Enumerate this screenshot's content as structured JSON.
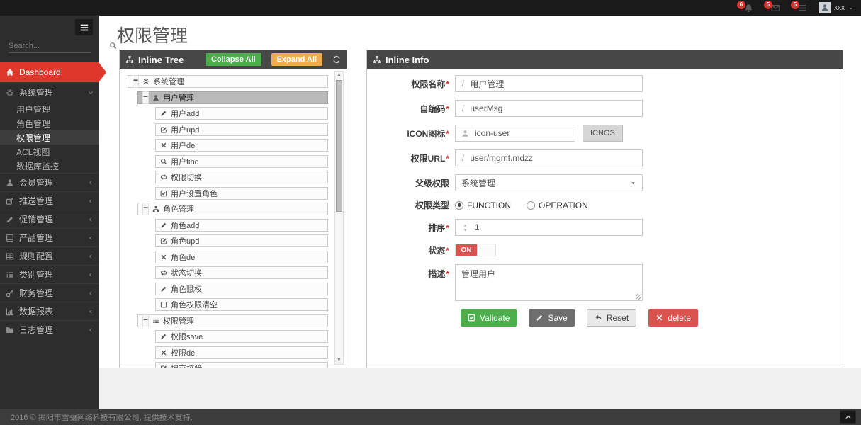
{
  "navbar": {
    "notifications": [
      {
        "icon": "bell-icon",
        "count": "6"
      },
      {
        "icon": "envelope-icon",
        "count": "5"
      },
      {
        "icon": "tasks-icon",
        "count": "5"
      }
    ],
    "user": {
      "name": "xxx"
    }
  },
  "sidebar": {
    "search_placeholder": "Search...",
    "items": [
      {
        "id": "dashboard",
        "icon": "home",
        "label": "Dashboard",
        "variant": "active-red"
      },
      {
        "id": "system",
        "icon": "gears",
        "label": "系统管理",
        "chevron": "down",
        "expanded": true,
        "children": [
          {
            "label": "用户管理",
            "active": false
          },
          {
            "label": "角色管理",
            "active": false
          },
          {
            "label": "权限管理",
            "active": true
          },
          {
            "label": "ACL视图",
            "active": false
          },
          {
            "label": "数据库监控",
            "active": false
          }
        ]
      },
      {
        "id": "member",
        "icon": "user",
        "label": "会员管理",
        "chevron": "left"
      },
      {
        "id": "push",
        "icon": "share",
        "label": "推送管理",
        "chevron": "left"
      },
      {
        "id": "promotion",
        "icon": "pencil",
        "label": "促销管理",
        "chevron": "left"
      },
      {
        "id": "product",
        "icon": "book",
        "label": "产品管理",
        "chevron": "left"
      },
      {
        "id": "rules",
        "icon": "table",
        "label": "规则配置",
        "chevron": "left"
      },
      {
        "id": "category",
        "icon": "list",
        "label": "类别管理",
        "chevron": "left"
      },
      {
        "id": "finance",
        "icon": "key",
        "label": "财务管理",
        "chevron": "left"
      },
      {
        "id": "reports",
        "icon": "chart",
        "label": "数据报表",
        "chevron": "left"
      },
      {
        "id": "logs",
        "icon": "folder",
        "label": "日志管理",
        "chevron": "left"
      }
    ]
  },
  "page": {
    "title": "权限管理"
  },
  "tree_panel": {
    "title": "Inline Tree",
    "icon": "sitemap-icon",
    "collapse_all_label": "Collapse All",
    "expand_all_label": "Expand All",
    "refresh_icon": "refresh-icon",
    "rows": [
      {
        "level": 0,
        "toggle": "minus",
        "icon": "gears",
        "label": "系统管理",
        "selected": false
      },
      {
        "level": 1,
        "toggle": "minus",
        "icon": "user",
        "label": "用户管理",
        "selected": true
      },
      {
        "level": 2,
        "icon": "pencil",
        "label": "用户add"
      },
      {
        "level": 2,
        "icon": "pencil-square",
        "label": "用户upd"
      },
      {
        "level": 2,
        "icon": "times",
        "label": "用户del"
      },
      {
        "level": 2,
        "icon": "search",
        "label": "用户find"
      },
      {
        "level": 2,
        "icon": "retweet",
        "label": "权限切换"
      },
      {
        "level": 2,
        "icon": "check-square",
        "label": "用户设置角色"
      },
      {
        "level": 1,
        "toggle": "minus",
        "icon": "sitemap",
        "label": "角色管理",
        "selected": false
      },
      {
        "level": 2,
        "icon": "pencil",
        "label": "角色add"
      },
      {
        "level": 2,
        "icon": "pencil-square",
        "label": "角色upd"
      },
      {
        "level": 2,
        "icon": "times",
        "label": "角色del"
      },
      {
        "level": 2,
        "icon": "retweet",
        "label": "状态切换"
      },
      {
        "level": 2,
        "icon": "pencil",
        "label": "角色赋权"
      },
      {
        "level": 2,
        "icon": "square-o",
        "label": "角色权限清空"
      },
      {
        "level": 1,
        "toggle": "minus",
        "icon": "list",
        "label": "权限管理",
        "selected": false
      },
      {
        "level": 2,
        "icon": "pencil",
        "label": "权限save"
      },
      {
        "level": 2,
        "icon": "times",
        "label": "权限del"
      },
      {
        "level": 2,
        "icon": "pencil-square",
        "label": "提交校验"
      }
    ]
  },
  "info_panel": {
    "title": "Inline Info",
    "icon": "sitemap-icon",
    "fields": [
      {
        "id": "perm-name",
        "label": "权限名称",
        "required": true,
        "control": "text",
        "prefix": "italic",
        "value": "用户管理"
      },
      {
        "id": "perm-code",
        "label": "自编码",
        "required": true,
        "control": "text",
        "prefix": "italic",
        "value": "userMsg"
      },
      {
        "id": "perm-icon",
        "label": "ICON图标",
        "required": true,
        "control": "text-button",
        "prefix": "user",
        "value": "icon-user",
        "button_label": "ICNOS"
      },
      {
        "id": "perm-url",
        "label": "权限URL",
        "required": true,
        "control": "text",
        "prefix": "italic",
        "value": "user/mgmt.mdzz"
      },
      {
        "id": "parent-perm",
        "label": "父级权限",
        "required": false,
        "control": "select",
        "value": "系统管理"
      },
      {
        "id": "perm-type",
        "label": "权限类型",
        "required": false,
        "control": "radio",
        "options": [
          {
            "label": "FUNCTION",
            "checked": true
          },
          {
            "label": "OPERATION",
            "checked": false
          }
        ]
      },
      {
        "id": "sort-order",
        "label": "排序",
        "required": true,
        "control": "number",
        "prefix": "arrows-v",
        "value": "1"
      },
      {
        "id": "status",
        "label": "状态",
        "required": true,
        "control": "toggle",
        "value": "ON"
      },
      {
        "id": "description",
        "label": "描述",
        "required": true,
        "control": "textarea",
        "value": "管理用户"
      }
    ],
    "buttons": [
      {
        "id": "validate",
        "icon": "check-square",
        "label": "Validate",
        "bg": "#4cae4c",
        "fg": "#ffffff"
      },
      {
        "id": "save",
        "icon": "pencil",
        "label": "Save",
        "bg": "#6e6e6e",
        "fg": "#ffffff"
      },
      {
        "id": "reset",
        "icon": "reply",
        "label": "Reset",
        "bg": "#e9e9e9",
        "fg": "#444444",
        "border": "#bbbbbb"
      },
      {
        "id": "delete",
        "icon": "times",
        "label": "delete",
        "bg": "#d9534f",
        "fg": "#ffffff"
      }
    ]
  },
  "footer": {
    "text": "2016 © 揭阳市雪骧网络科技有限公司, 提供技术支持."
  },
  "colors": {
    "accent_red": "#e0372c",
    "header_dark": "#474747",
    "green": "#4cae4c",
    "orange": "#f0ad4e",
    "danger": "#d9534f"
  }
}
